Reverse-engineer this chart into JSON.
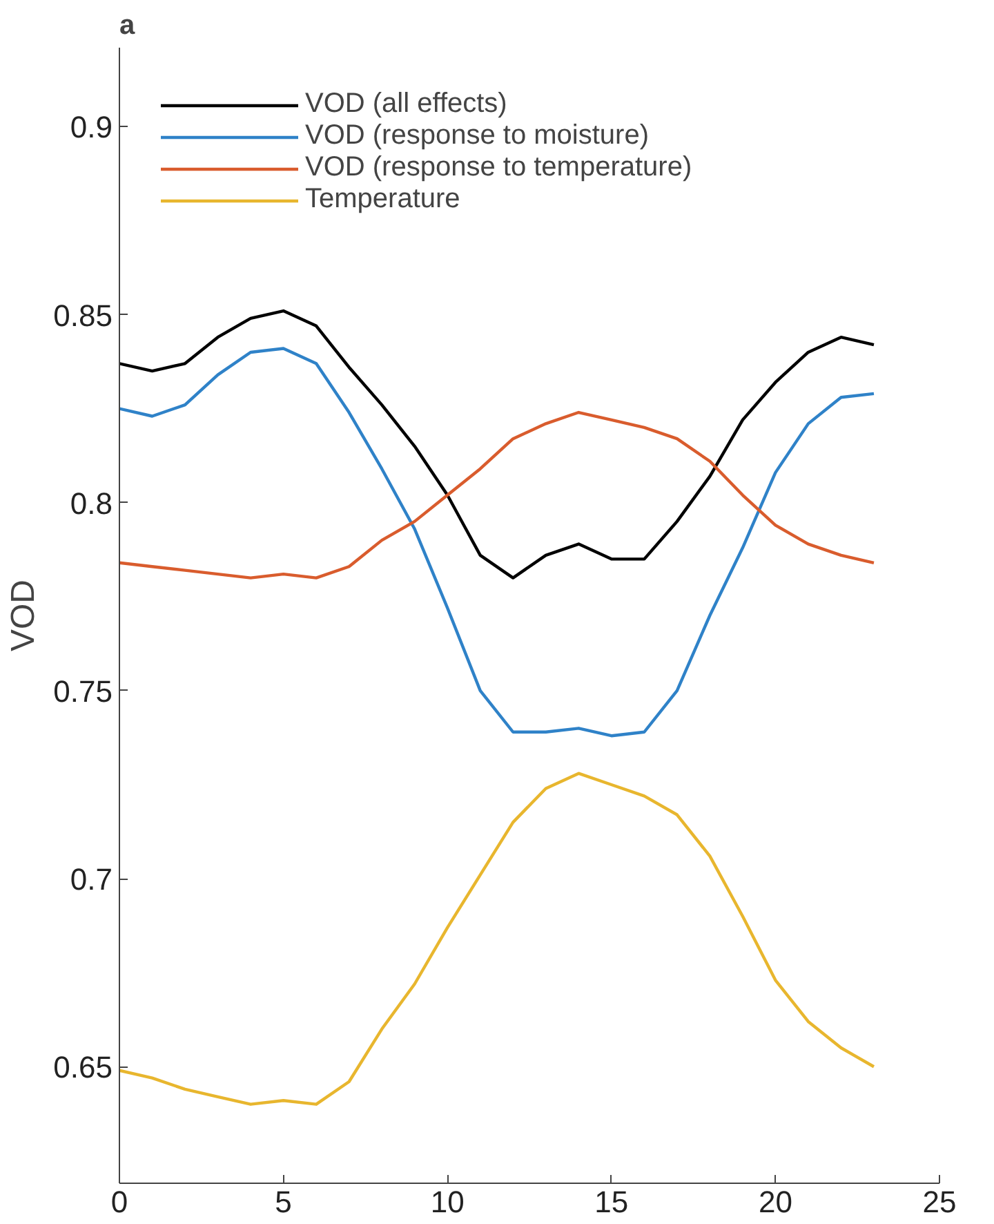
{
  "chart_data": {
    "type": "line",
    "title": "a",
    "ylabel": "VOD",
    "x": [
      0,
      1,
      2,
      3,
      4,
      5,
      6,
      7,
      8,
      9,
      10,
      11,
      12,
      13,
      14,
      15,
      16,
      17,
      18,
      19,
      20,
      21,
      22,
      23
    ],
    "xlim": [
      0,
      25
    ],
    "xticks": [
      0,
      5,
      10,
      15,
      20,
      25
    ],
    "ylim": [
      0.619,
      0.921
    ],
    "yticks": [
      0.65,
      0.7,
      0.75,
      0.8,
      0.85,
      0.9
    ],
    "grid": false,
    "legend": "top left",
    "line_style": "solid",
    "series": [
      {
        "name": "VOD (all effects)",
        "color": "#000000",
        "values": [
          0.837,
          0.835,
          0.837,
          0.844,
          0.849,
          0.851,
          0.847,
          0.836,
          0.826,
          0.815,
          0.802,
          0.786,
          0.78,
          0.786,
          0.789,
          0.785,
          0.785,
          0.795,
          0.807,
          0.822,
          0.832,
          0.84,
          0.844,
          0.842
        ]
      },
      {
        "name": "VOD (response to moisture)",
        "color": "#2f82c8",
        "values": [
          0.825,
          0.823,
          0.826,
          0.834,
          0.84,
          0.841,
          0.837,
          0.824,
          0.809,
          0.793,
          0.772,
          0.75,
          0.739,
          0.739,
          0.74,
          0.738,
          0.739,
          0.75,
          0.77,
          0.788,
          0.808,
          0.821,
          0.828,
          0.829
        ]
      },
      {
        "name": "VOD (response to temperature)",
        "color": "#d95c2d",
        "values": [
          0.784,
          0.783,
          0.782,
          0.781,
          0.78,
          0.781,
          0.78,
          0.783,
          0.79,
          0.795,
          0.802,
          0.809,
          0.817,
          0.821,
          0.824,
          0.822,
          0.82,
          0.817,
          0.811,
          0.802,
          0.794,
          0.789,
          0.786,
          0.784
        ]
      },
      {
        "name": "Temperature",
        "color": "#e8b62e",
        "values": [
          0.649,
          0.647,
          0.644,
          0.642,
          0.64,
          0.641,
          0.64,
          0.646,
          0.66,
          0.672,
          0.687,
          0.701,
          0.715,
          0.724,
          0.728,
          0.725,
          0.722,
          0.717,
          0.706,
          0.69,
          0.673,
          0.662,
          0.655,
          0.65
        ]
      }
    ]
  }
}
